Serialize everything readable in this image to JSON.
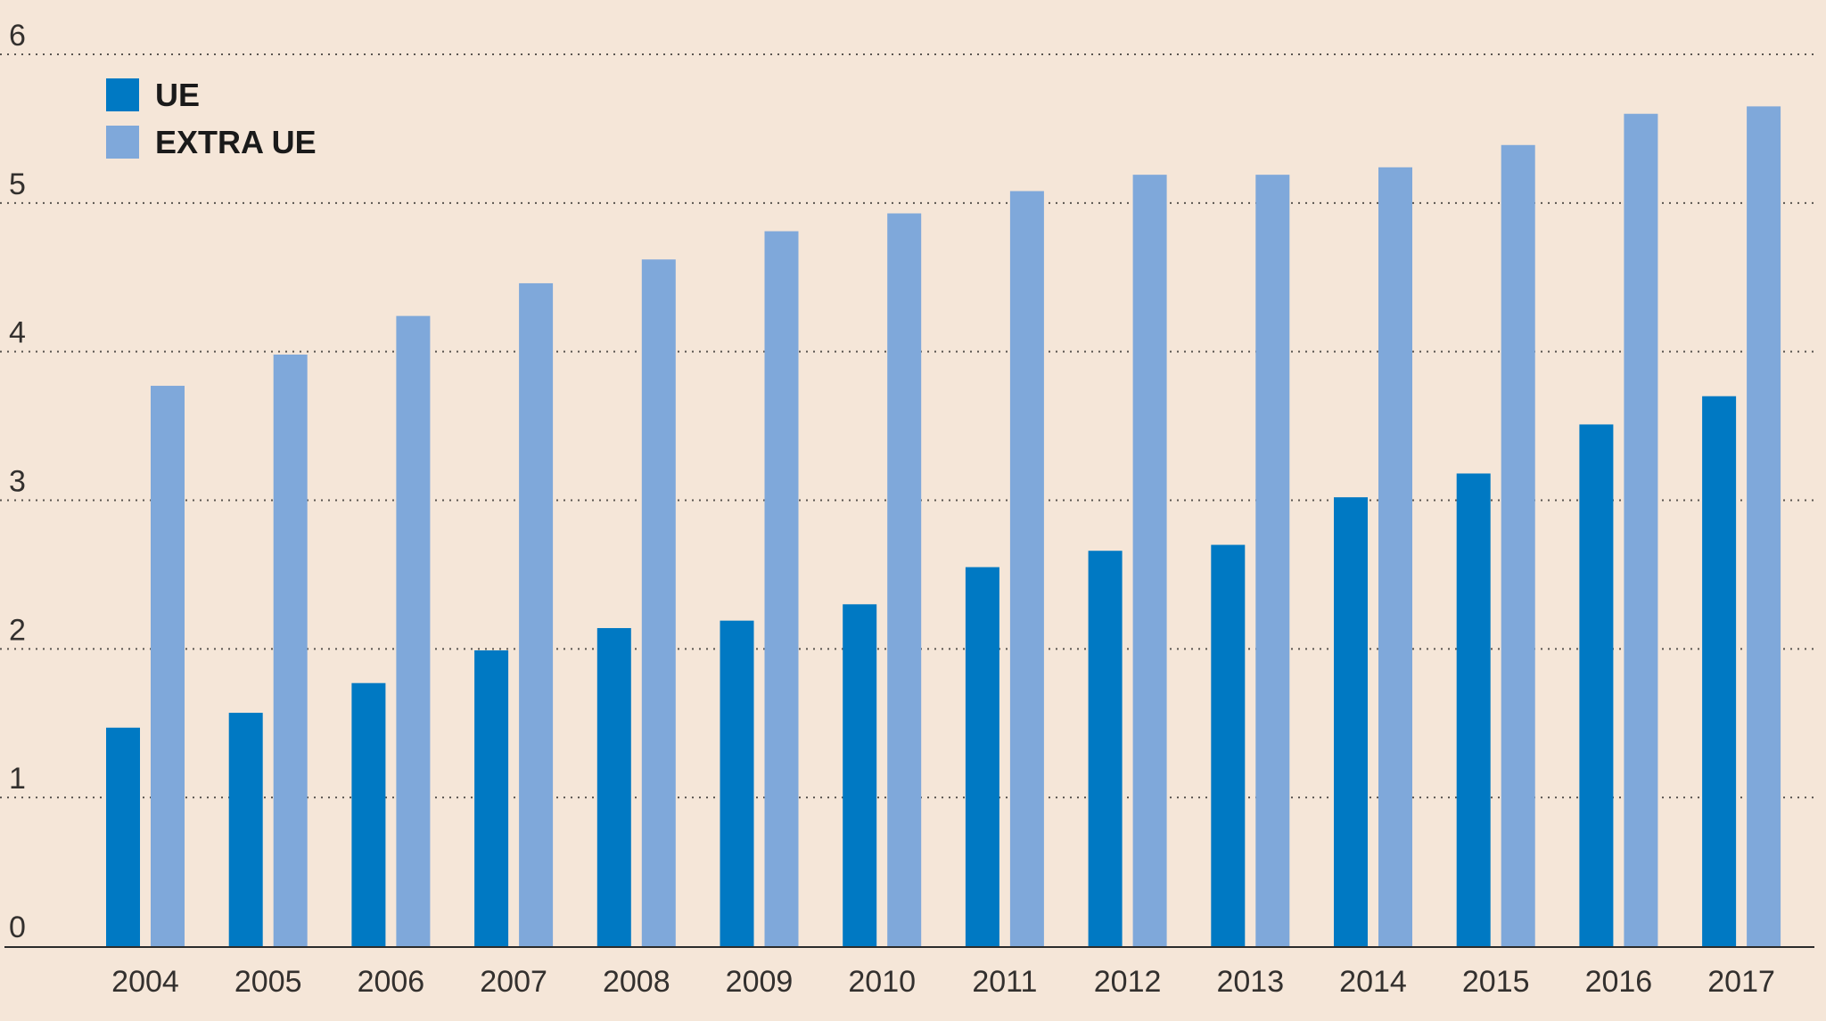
{
  "chart_data": {
    "type": "bar",
    "title": "",
    "xlabel": "",
    "ylabel": "",
    "ylim": [
      0,
      6
    ],
    "yticks": [
      0,
      1,
      2,
      3,
      4,
      5,
      6
    ],
    "grid": true,
    "legend_position": "top-left",
    "categories": [
      "2004",
      "2005",
      "2006",
      "2007",
      "2008",
      "2009",
      "2010",
      "2011",
      "2012",
      "2013",
      "2014",
      "2015",
      "2016",
      "2017"
    ],
    "series": [
      {
        "name": "UE",
        "color": "#0079c3",
        "values": [
          1.47,
          1.57,
          1.77,
          1.99,
          2.14,
          2.19,
          2.3,
          2.55,
          2.66,
          2.7,
          3.02,
          3.18,
          3.51,
          3.7
        ]
      },
      {
        "name": "EXTRA UE",
        "color": "#7fa8da",
        "values": [
          3.77,
          3.98,
          4.24,
          4.46,
          4.62,
          4.81,
          4.93,
          5.08,
          5.19,
          5.19,
          5.24,
          5.39,
          5.6,
          5.65
        ]
      }
    ]
  }
}
